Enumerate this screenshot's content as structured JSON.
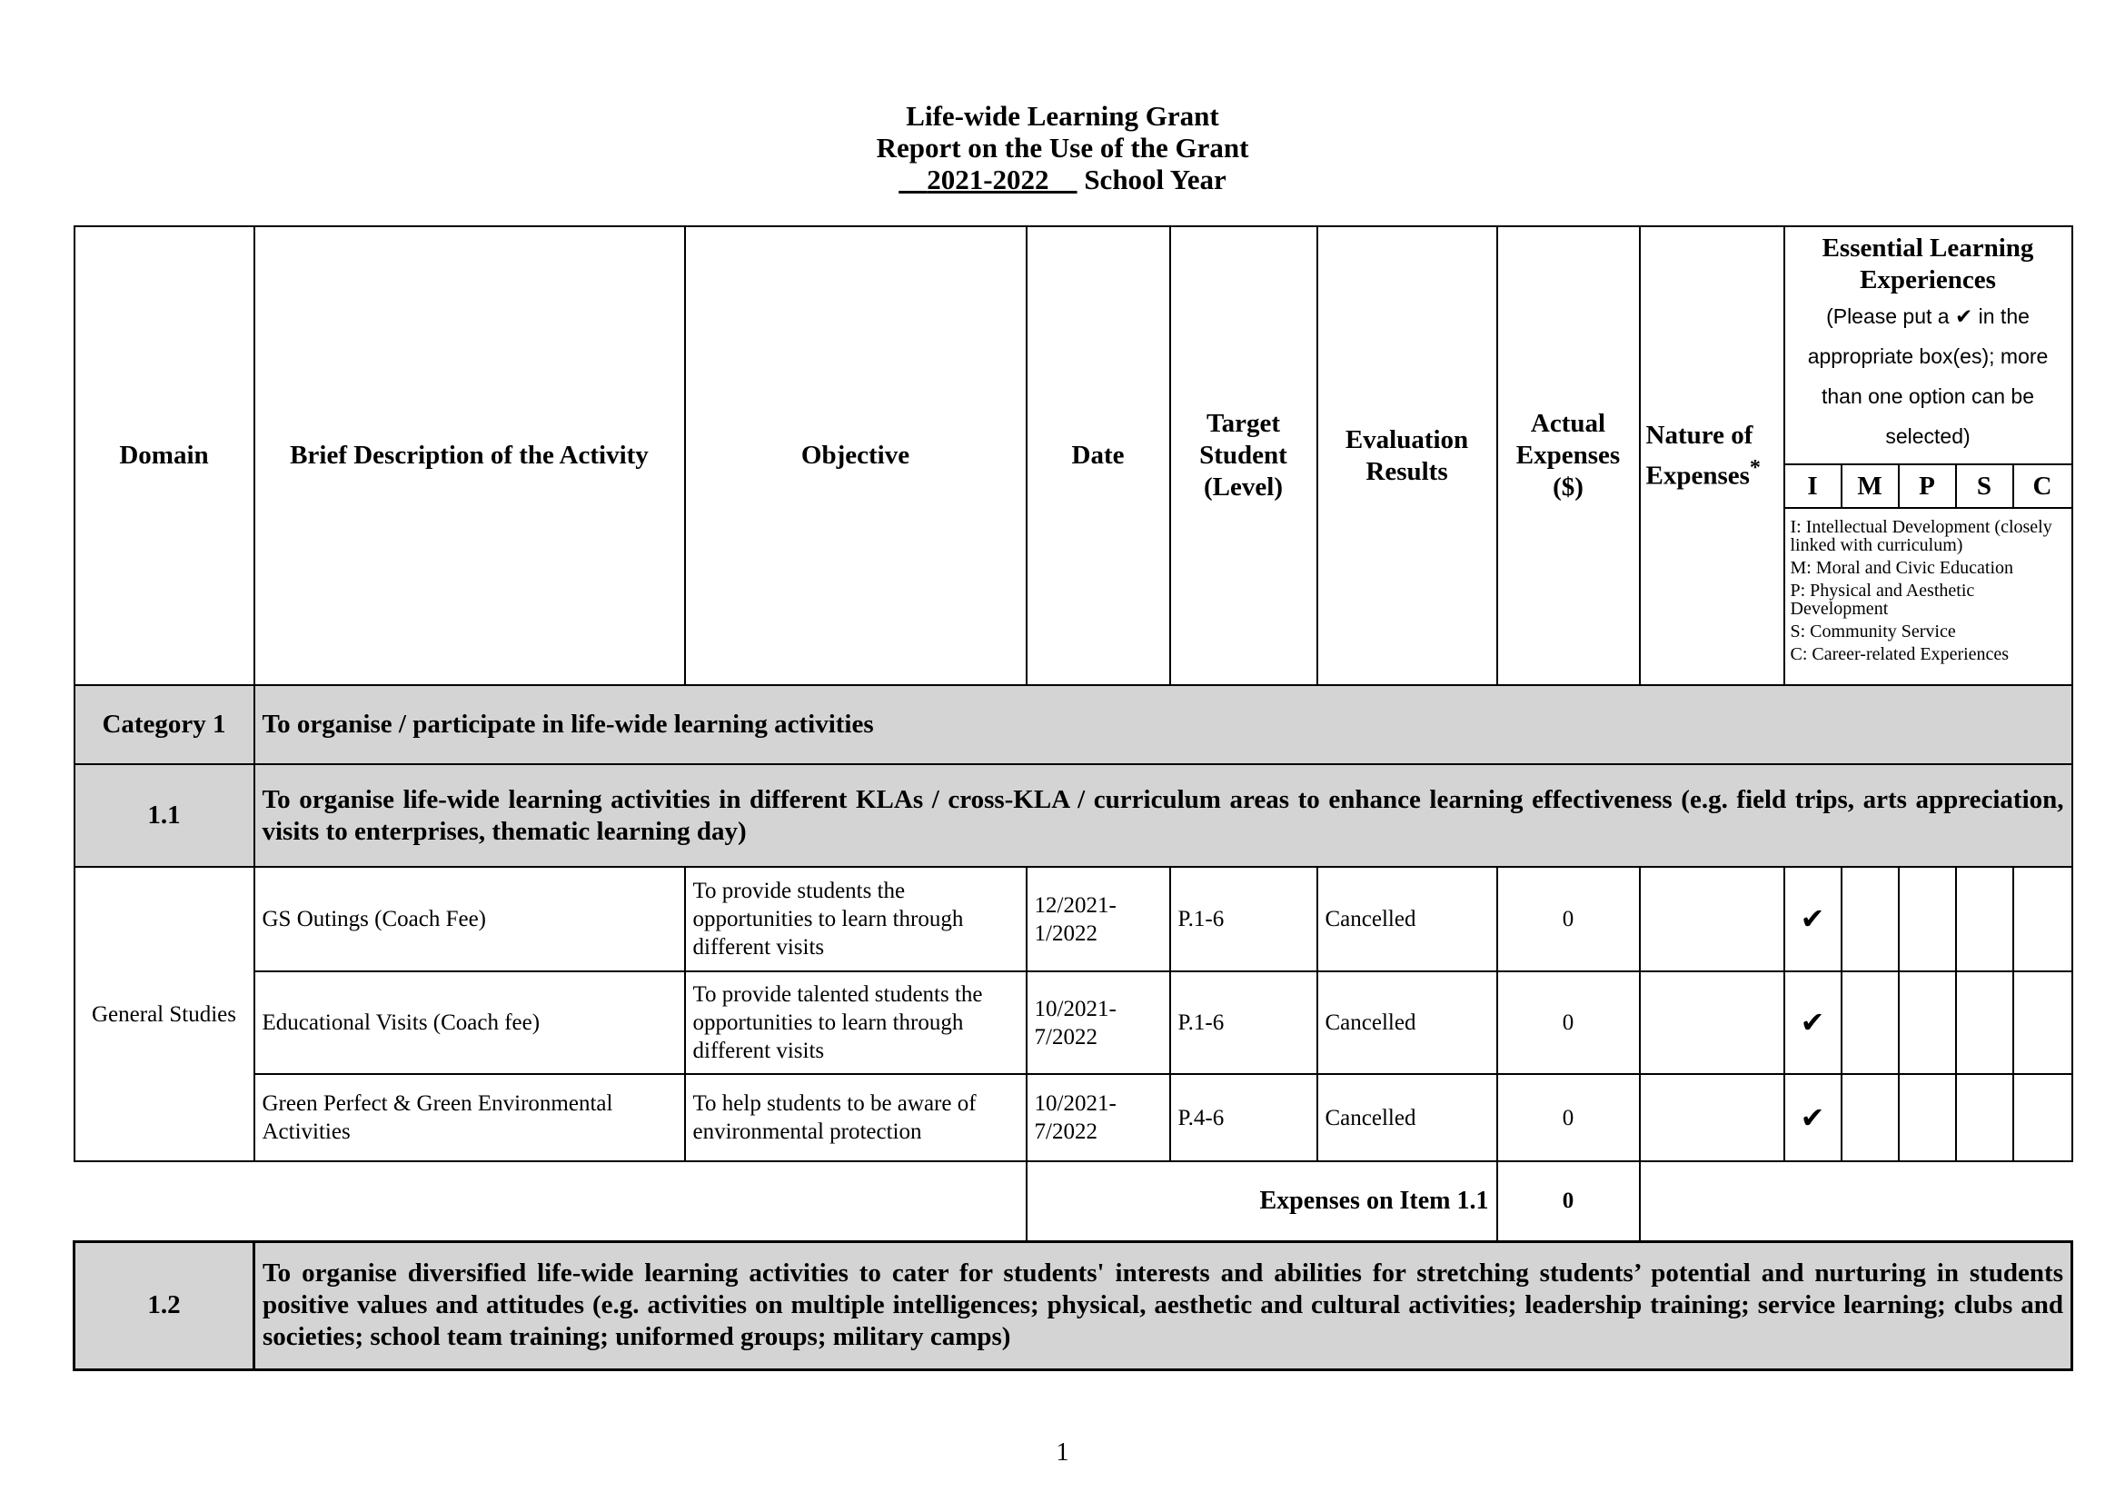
{
  "title": {
    "line1": "Life-wide Learning Grant",
    "line2": "Report on the Use of the Grant",
    "year": "2021-2022",
    "year_suffix": "School Year"
  },
  "headers": {
    "domain": "Domain",
    "description": "Brief Description of the Activity",
    "objective": "Objective",
    "date": "Date",
    "target": "Target Student (Level)",
    "evaluation": "Evaluation Results",
    "expenses": "Actual Expenses ($)",
    "nature": "Nature of Expenses",
    "nature_mark": "*",
    "ele_title": "Essential Learning Experiences",
    "ele_note": "(Please put a ✔ in the appropriate box(es); more than one option can be selected)",
    "ele_cols": [
      "I",
      "M",
      "P",
      "S",
      "C"
    ],
    "ele_legend": [
      "I: Intellectual Development (closely linked with curriculum)",
      "M: Moral and Civic Education",
      "P: Physical and Aesthetic Development",
      "S: Community Service",
      "C: Career-related Experiences"
    ]
  },
  "category1": {
    "label": "Category 1",
    "text": "To organise / participate in life-wide learning activities"
  },
  "item11": {
    "label": "1.1",
    "text": "To organise life-wide learning activities in different KLAs / cross-KLA / curriculum areas to enhance learning effectiveness (e.g. field trips, arts appreciation, visits to enterprises, thematic learning day)"
  },
  "domain": "General Studies",
  "rows": [
    {
      "description": "GS Outings (Coach Fee)",
      "objective": "To provide students the opportunities to learn through different visits",
      "date": "12/2021-1/2022",
      "target": "P.1-6",
      "evaluation": "Cancelled",
      "expenses": "0",
      "nature": "",
      "ele": [
        "✔",
        "",
        "",
        "",
        ""
      ]
    },
    {
      "description": "Educational Visits (Coach fee)",
      "objective": "To provide talented students the opportunities to learn through different visits",
      "date": "10/2021-7/2022",
      "target": "P.1-6",
      "evaluation": "Cancelled",
      "expenses": "0",
      "nature": "",
      "ele": [
        "✔",
        "",
        "",
        "",
        ""
      ]
    },
    {
      "description": "Green Perfect & Green Environmental Activities",
      "objective": "To help students to be aware of environmental protection",
      "date": "10/2021-7/2022",
      "target": "P.4-6",
      "evaluation": "Cancelled",
      "expenses": "0",
      "nature": "",
      "ele": [
        "✔",
        "",
        "",
        "",
        ""
      ]
    }
  ],
  "subtotal": {
    "label": "Expenses on Item 1.1",
    "value": "0"
  },
  "item12": {
    "label": "1.2",
    "text": "To organise diversified life-wide learning activities to cater for students' interests and abilities for stretching students’ potential and nurturing in students positive values and attitudes (e.g. activities on multiple intelligences; physical, aesthetic and cultural activities; leadership training; service learning; clubs and societies; school team training; uniformed groups; military camps)"
  },
  "page_number": "1"
}
